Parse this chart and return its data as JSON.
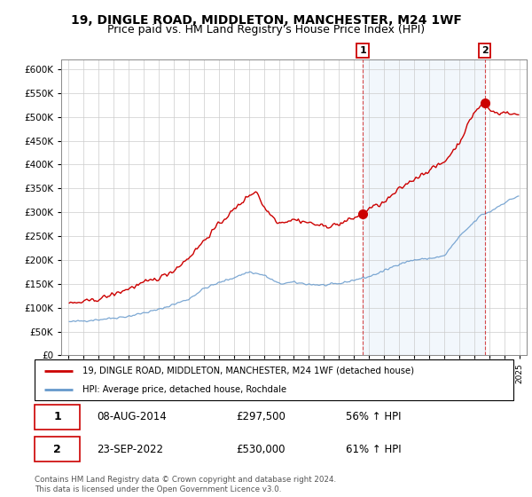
{
  "title": "19, DINGLE ROAD, MIDDLETON, MANCHESTER, M24 1WF",
  "subtitle": "Price paid vs. HM Land Registry's House Price Index (HPI)",
  "legend_line1": "19, DINGLE ROAD, MIDDLETON, MANCHESTER, M24 1WF (detached house)",
  "legend_line2": "HPI: Average price, detached house, Rochdale",
  "sale1_date": "08-AUG-2014",
  "sale1_price": "£297,500",
  "sale1_hpi": "56% ↑ HPI",
  "sale2_date": "23-SEP-2022",
  "sale2_price": "£530,000",
  "sale2_hpi": "61% ↑ HPI",
  "footer": "Contains HM Land Registry data © Crown copyright and database right 2024.\nThis data is licensed under the Open Government Licence v3.0.",
  "red_color": "#cc0000",
  "blue_color": "#6699cc",
  "shade_color": "#ddeeff",
  "vline_color": "#cc0000",
  "ylim": [
    0,
    620000
  ],
  "yticks": [
    0,
    50000,
    100000,
    150000,
    200000,
    250000,
    300000,
    350000,
    400000,
    450000,
    500000,
    550000,
    600000
  ],
  "xmin": 1994.5,
  "xmax": 2025.5,
  "vline1_x": 2014.583,
  "vline2_x": 2022.708,
  "sale1_marker_x": 2014.583,
  "sale1_marker_y": 297500,
  "sale2_marker_x": 2022.708,
  "sale2_marker_y": 530000,
  "title_fontsize": 10,
  "subtitle_fontsize": 9
}
